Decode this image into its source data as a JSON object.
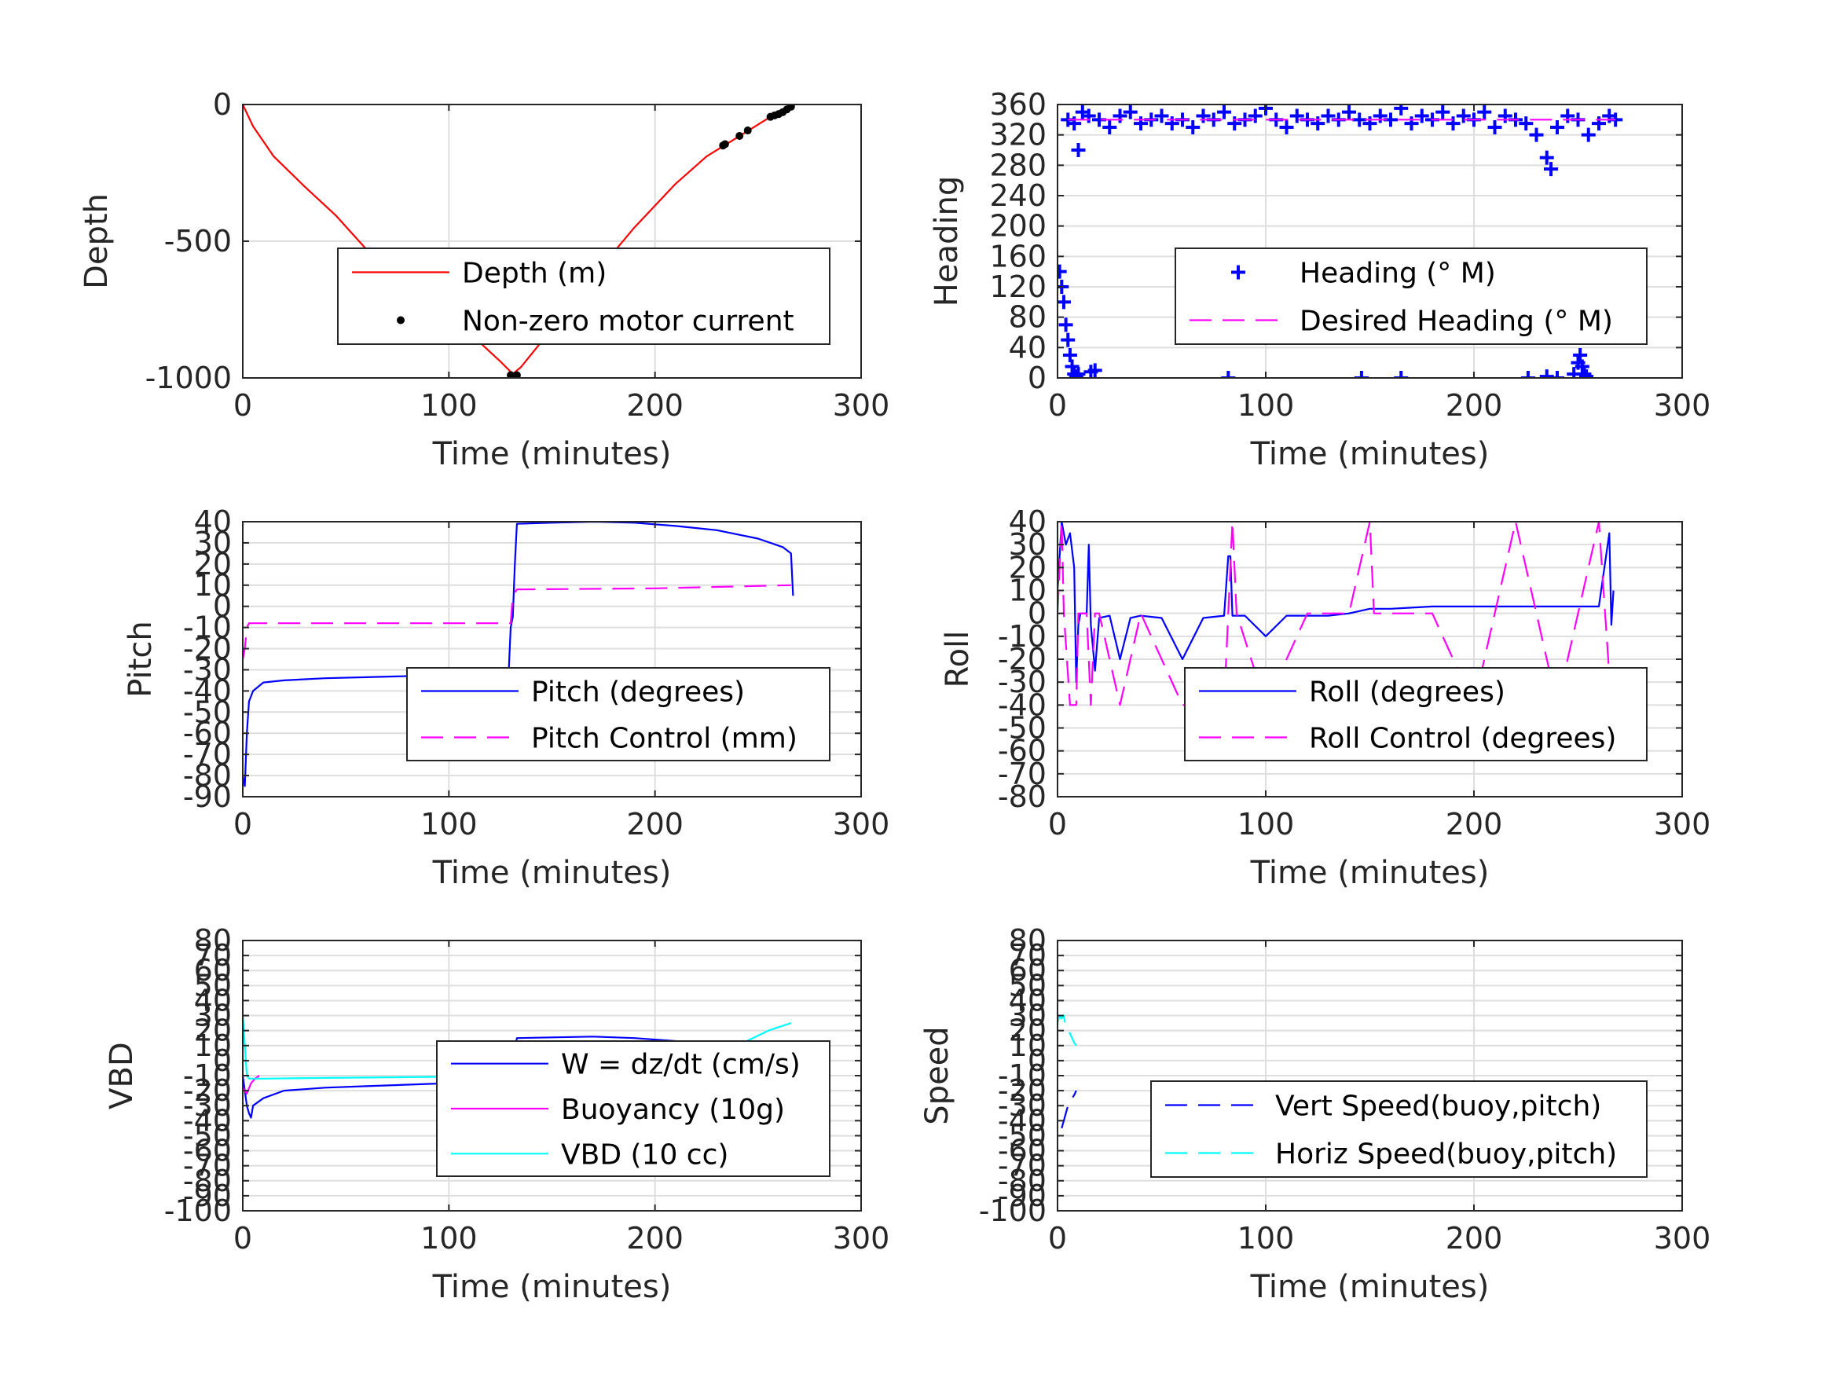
{
  "figure": {
    "background": "#ffffff"
  },
  "chart_data": [
    {
      "id": "depth",
      "type": "line",
      "xlabel": "Time (minutes)",
      "ylabel": "Depth",
      "xlim": [
        0,
        300
      ],
      "ylim": [
        -1000,
        0
      ],
      "xticks": [
        0,
        100,
        200,
        300
      ],
      "yticks": [
        -1000,
        -500,
        0
      ],
      "grid": true,
      "legend": "lower-right",
      "series": [
        {
          "name": "Depth (m)",
          "color": "#ff0000",
          "style": "solid",
          "marker": "none",
          "x": [
            0,
            5,
            15,
            30,
            45,
            60,
            80,
            100,
            115,
            125,
            131,
            135,
            150,
            170,
            190,
            210,
            225,
            240,
            255,
            266
          ],
          "y": [
            0,
            -80,
            -190,
            -300,
            -405,
            -530,
            -650,
            -770,
            -870,
            -940,
            -985,
            -960,
            -820,
            -630,
            -450,
            -290,
            -190,
            -120,
            -50,
            -5
          ]
        },
        {
          "name": "Non-zero motor current",
          "color": "#000000",
          "style": "none",
          "marker": "dot",
          "x": [
            130,
            131,
            132,
            133,
            233,
            234,
            241,
            245,
            256,
            258,
            260,
            262,
            264,
            266
          ],
          "y": [
            -990,
            -995,
            -993,
            -990,
            -150,
            -145,
            -115,
            -95,
            -45,
            -40,
            -35,
            -28,
            -18,
            -8
          ]
        }
      ]
    },
    {
      "id": "heading",
      "type": "scatter",
      "xlabel": "Time (minutes)",
      "ylabel": "Heading",
      "xlim": [
        0,
        300
      ],
      "ylim": [
        0,
        360
      ],
      "xticks": [
        0,
        100,
        200,
        300
      ],
      "yticks": [
        0,
        40,
        80,
        120,
        160,
        200,
        240,
        280,
        320,
        360
      ],
      "grid": true,
      "legend": "lower-right",
      "series": [
        {
          "name": "Heading (° M)",
          "color": "#0000ff",
          "marker": "plus",
          "x": [
            1,
            2,
            3,
            4,
            5,
            6,
            7,
            8,
            9,
            10,
            16,
            18,
            82,
            146,
            165,
            226,
            235,
            240,
            248,
            250,
            251,
            252,
            253,
            254,
            5,
            8,
            10,
            12,
            15,
            20,
            25,
            30,
            35,
            40,
            45,
            50,
            55,
            60,
            65,
            70,
            75,
            80,
            85,
            90,
            95,
            100,
            105,
            110,
            115,
            120,
            125,
            130,
            135,
            140,
            145,
            150,
            155,
            160,
            165,
            170,
            175,
            180,
            185,
            190,
            195,
            200,
            205,
            210,
            215,
            220,
            225,
            230,
            235,
            237,
            240,
            245,
            250,
            255,
            260,
            265,
            268
          ],
          "y": [
            140,
            120,
            100,
            70,
            50,
            30,
            15,
            5,
            2,
            5,
            8,
            10,
            0,
            0,
            0,
            0,
            2,
            0,
            5,
            20,
            30,
            15,
            5,
            2,
            340,
            335,
            300,
            350,
            345,
            340,
            330,
            345,
            350,
            335,
            340,
            345,
            335,
            340,
            330,
            345,
            340,
            350,
            335,
            340,
            345,
            355,
            340,
            330,
            345,
            340,
            335,
            345,
            340,
            350,
            340,
            335,
            345,
            340,
            355,
            335,
            345,
            340,
            350,
            335,
            345,
            340,
            350,
            330,
            345,
            340,
            335,
            320,
            290,
            275,
            330,
            345,
            340,
            320,
            335,
            345,
            340
          ]
        },
        {
          "name": "Desired Heading (° M)",
          "color": "#ff00ff",
          "style": "dashed",
          "x": [
            5,
            268
          ],
          "y": [
            340,
            340
          ]
        }
      ]
    },
    {
      "id": "pitch",
      "type": "line",
      "xlabel": "Time (minutes)",
      "ylabel": "Pitch",
      "xlim": [
        0,
        300
      ],
      "ylim": [
        -90,
        40
      ],
      "xticks": [
        0,
        100,
        200,
        300
      ],
      "yticks": [
        -90,
        -80,
        -70,
        -60,
        -50,
        -40,
        -30,
        -20,
        -10,
        0,
        10,
        20,
        30,
        40
      ],
      "grid": true,
      "legend": "lower-right",
      "series": [
        {
          "name": "Pitch (degrees)",
          "color": "#0000ff",
          "style": "solid",
          "x": [
            0,
            1,
            2,
            3,
            5,
            10,
            20,
            40,
            60,
            80,
            100,
            120,
            129,
            130,
            131,
            132,
            133,
            150,
            170,
            190,
            210,
            230,
            250,
            262,
            266,
            267
          ],
          "y": [
            -80,
            -85,
            -60,
            -45,
            -40,
            -36,
            -35,
            -34,
            -33.5,
            -33,
            -32.5,
            -32,
            -31.5,
            -10,
            -5,
            20,
            39,
            39.5,
            40,
            39.5,
            38,
            36,
            32,
            28,
            25,
            5
          ]
        },
        {
          "name": "Pitch Control (mm)",
          "color": "#ff00ff",
          "style": "dashed",
          "x": [
            0,
            1,
            2,
            3,
            130,
            131,
            133,
            200,
            266
          ],
          "y": [
            -25,
            -20,
            -10,
            -8,
            -8,
            5,
            8,
            8.5,
            10
          ]
        }
      ]
    },
    {
      "id": "roll",
      "type": "line",
      "xlabel": "Time (minutes)",
      "ylabel": "Roll",
      "xlim": [
        0,
        300
      ],
      "ylim": [
        -80,
        40
      ],
      "xticks": [
        0,
        100,
        200,
        300
      ],
      "yticks": [
        -80,
        -70,
        -60,
        -50,
        -40,
        -30,
        -20,
        -10,
        0,
        10,
        20,
        30,
        40
      ],
      "grid": true,
      "legend": "lower-right",
      "series": [
        {
          "name": "Roll (degrees)",
          "color": "#0000ff",
          "style": "solid",
          "x": [
            0,
            2,
            4,
            6,
            8,
            9,
            10,
            11,
            14,
            15,
            16,
            18,
            20,
            25,
            30,
            35,
            40,
            50,
            60,
            70,
            80,
            82,
            83,
            84,
            90,
            100,
            110,
            120,
            130,
            140,
            150,
            160,
            180,
            200,
            220,
            240,
            260,
            265,
            266,
            267
          ],
          "y": [
            10,
            40,
            30,
            35,
            20,
            -30,
            -5,
            0,
            0,
            30,
            -5,
            -25,
            -2,
            -1,
            -20,
            -2,
            -1,
            -2,
            -20,
            -2,
            -1,
            25,
            25,
            -1,
            -1,
            -10,
            -1,
            -1,
            -1,
            0,
            2,
            2,
            3,
            3,
            3,
            3,
            3,
            35,
            -5,
            10
          ]
        },
        {
          "name": "Roll Control (degrees)",
          "color": "#ff00ff",
          "style": "dashed",
          "x": [
            0,
            2,
            3,
            6,
            9,
            10,
            14,
            16,
            18,
            20,
            30,
            40,
            60,
            80,
            84,
            86,
            100,
            120,
            140,
            150,
            152,
            160,
            180,
            200,
            220,
            240,
            260,
            266
          ],
          "y": [
            0,
            40,
            0,
            -40,
            -40,
            0,
            0,
            -40,
            0,
            0,
            -40,
            0,
            -40,
            -40,
            40,
            0,
            -40,
            0,
            0,
            40,
            0,
            0,
            0,
            -40,
            40,
            -40,
            40,
            -40
          ]
        }
      ]
    },
    {
      "id": "vbd",
      "type": "line",
      "xlabel": "Time (minutes)",
      "ylabel": "VBD",
      "xlim": [
        0,
        300
      ],
      "ylim": [
        -100,
        80
      ],
      "xticks": [
        0,
        100,
        200,
        300
      ],
      "yticks": [
        -100,
        -90,
        -80,
        -70,
        -60,
        -50,
        -40,
        -30,
        -20,
        -10,
        0,
        10,
        20,
        30,
        40,
        50,
        60,
        70,
        80
      ],
      "grid": true,
      "legend": "lower-right",
      "series": [
        {
          "name": "W = dz/dt (cm/s)",
          "color": "#0000ff",
          "style": "solid",
          "x": [
            0,
            1,
            2,
            3,
            4,
            5,
            10,
            20,
            40,
            60,
            80,
            100,
            120,
            129,
            131,
            133,
            150,
            170,
            190,
            210,
            230,
            250,
            260,
            266
          ],
          "y": [
            -10,
            -20,
            -30,
            -35,
            -38,
            -30,
            -25,
            -20,
            -18,
            -17,
            -16,
            -15,
            -14,
            -13,
            0,
            15,
            15.5,
            16,
            15,
            13,
            10,
            5,
            2,
            5
          ]
        },
        {
          "name": "Buoyancy (10g)",
          "color": "#ff00ff",
          "style": "solid",
          "x": [
            0,
            2,
            4,
            6,
            8
          ],
          "y": [
            -18,
            -22,
            -15,
            -12,
            -10
          ]
        },
        {
          "name": "VBD (10 cc)",
          "color": "#00ffff",
          "style": "solid",
          "x": [
            0,
            1,
            2,
            3,
            4,
            10,
            40,
            80,
            120,
            130,
            132,
            150,
            200,
            240,
            255,
            266
          ],
          "y": [
            30,
            10,
            -10,
            -12,
            -12,
            -12,
            -11.5,
            -11,
            -10.5,
            -10,
            8,
            8.5,
            9,
            10,
            20,
            25
          ]
        }
      ]
    },
    {
      "id": "speed",
      "type": "line",
      "xlabel": "Time (minutes)",
      "ylabel": "Speed",
      "xlim": [
        0,
        300
      ],
      "ylim": [
        -100,
        80
      ],
      "xticks": [
        0,
        100,
        200,
        300
      ],
      "yticks": [
        -100,
        -90,
        -80,
        -70,
        -60,
        -50,
        -40,
        -30,
        -20,
        -10,
        0,
        10,
        20,
        30,
        40,
        50,
        60,
        70,
        80
      ],
      "grid": true,
      "legend": "lower-right",
      "series": [
        {
          "name": "Vert Speed(buoy,pitch)",
          "color": "#0000ff",
          "style": "dashed",
          "x": [
            2,
            3,
            4,
            5,
            6,
            7,
            8,
            9
          ],
          "y": [
            -45,
            -40,
            -35,
            -30,
            -27,
            -25,
            -23,
            -20
          ]
        },
        {
          "name": "Horiz Speed(buoy,pitch)",
          "color": "#00ffff",
          "style": "dashed",
          "x": [
            0,
            1,
            2,
            3,
            4,
            5,
            6,
            7,
            8,
            9
          ],
          "y": [
            25,
            30,
            28,
            30,
            22,
            20,
            18,
            15,
            12,
            10
          ]
        }
      ]
    }
  ]
}
